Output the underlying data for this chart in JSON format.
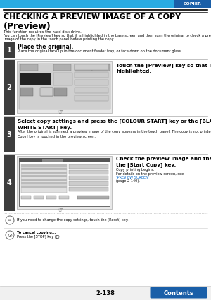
{
  "title_line1": "CHECKING A PREVIEW IMAGE OF A COPY",
  "title_line2": "(Preview)",
  "header_label": "COPIER",
  "header_blue_color": "#29abe2",
  "header_dark_blue": "#1a5fa8",
  "step_bg_color": "#3d3d3d",
  "step_text_color": "#ffffff",
  "body_bg": "#ffffff",
  "step1_title": "Place the original.",
  "step1_body": "Place the original face up in the document feeder tray, or face down on the document glass.",
  "step2_title": "Touch the [Preview] key so that it is\nhighlighted.",
  "step3_title": "Select copy settings and press the [COLOUR START] key or the [BLACK &\nWHITE START] key.",
  "step3_body": "After the original is scanned, a preview image of the copy appears in the touch panel. The copy is not printed until the [Start\nCopy] key is touched in the preview screen.",
  "step4_title": "Check the preview image and then touch\nthe [Start Copy] key.",
  "step4_body1": "Copy printing begins.",
  "step4_body2": "For details on the preview screen, see ",
  "step4_link": "'PREVIEW SCREEN'",
  "step4_body3": "(page 2-140).",
  "note1": "If you need to change the copy settings, touch the [Reset] key.",
  "note2_line1": "To cancel copying...",
  "note2_line2": "Press the [STOP] key (⓮).",
  "footer_text": "2-138",
  "footer_btn": "Contents",
  "desc_line1": "This function requires the hard disk drive.",
  "desc_line2": "You can touch the [Preview] key so that it is highlighted in the base screen and then scan the original to check a preview",
  "desc_line3": "image of the copy in the touch panel before printing the copy."
}
